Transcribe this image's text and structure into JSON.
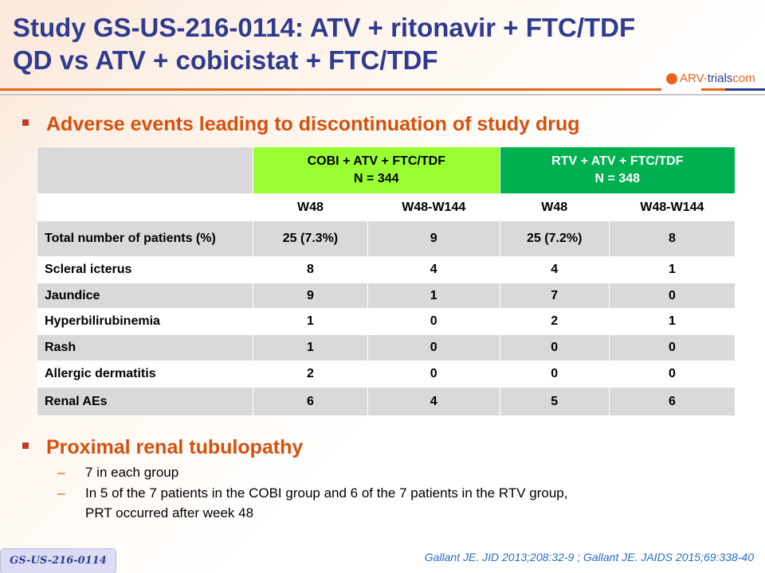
{
  "title": {
    "line1": "Study GS-US-216-0114: ATV + ritonavir + FTC/TDF",
    "line2": "QD vs ATV + cobicistat + FTC/TDF"
  },
  "logo": {
    "text1": "ARV-",
    "text2": "trials",
    "text3": "com"
  },
  "bullet1": "Adverse events leading to discontinuation of study drug",
  "table": {
    "groups": [
      {
        "name": "COBI + ATV + FTC/TDF",
        "n": "N = 344",
        "color": "#99ff33"
      },
      {
        "name": "RTV + ATV + FTC/TDF",
        "n": "N = 348",
        "color": "#00b050"
      }
    ],
    "subheaders": [
      "W48",
      "W48-W144",
      "W48",
      "W48-W144"
    ],
    "rows": [
      {
        "label": "Total number of patients (%)",
        "values": [
          "25 (7.3%)",
          "9",
          "25 (7.2%)",
          "8"
        ]
      },
      {
        "label": "Scleral icterus",
        "values": [
          "8",
          "4",
          "4",
          "1"
        ]
      },
      {
        "label": "Jaundice",
        "values": [
          "9",
          "1",
          "7",
          "0"
        ]
      },
      {
        "label": "Hyperbilirubinemia",
        "values": [
          "1",
          "0",
          "2",
          "1"
        ]
      },
      {
        "label": "Rash",
        "values": [
          "1",
          "0",
          "0",
          "0"
        ]
      },
      {
        "label": "Allergic dermatitis",
        "values": [
          "2",
          "0",
          "0",
          "0"
        ]
      },
      {
        "label": "Renal AEs",
        "values": [
          "6",
          "4",
          "5",
          "6"
        ]
      }
    ]
  },
  "bullet2": "Proximal renal tubulopathy",
  "sub": {
    "dash": "–",
    "item1": "7 in each group",
    "item2a": "In 5 of the 7 patients in the COBI group and 6 of the 7 patients in the RTV group,",
    "item2b": "PRT occurred after week 48"
  },
  "badge": "GS-US-216-0114",
  "reference": "Gallant JE. JID 2013;208:32-9 ; Gallant JE. JAIDS 2015;69:338-40"
}
